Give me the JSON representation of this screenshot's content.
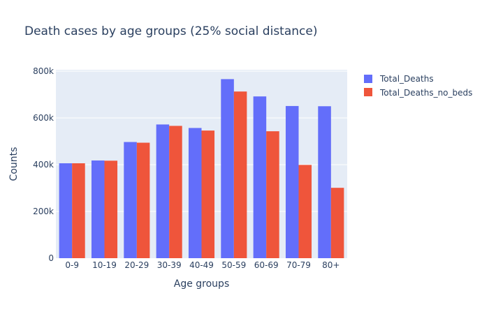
{
  "chart_data": {
    "type": "bar",
    "title": "Death cases by age groups (25% social distance)",
    "xlabel": "Age groups",
    "ylabel": "Counts",
    "categories": [
      "0-9",
      "10-19",
      "20-29",
      "30-39",
      "40-49",
      "50-59",
      "60-69",
      "70-79",
      "80+"
    ],
    "series": [
      {
        "name": "Total_Deaths",
        "color": "#636efa",
        "values": [
          406000,
          418000,
          497000,
          572000,
          557000,
          766000,
          692000,
          651000,
          650000
        ]
      },
      {
        "name": "Total_Deaths_no_beds",
        "color": "#ef553b",
        "values": [
          406000,
          417000,
          494000,
          566000,
          546000,
          713000,
          543000,
          399000,
          301000
        ]
      }
    ],
    "ylim": [
      0,
      806000
    ],
    "yticks": [
      0,
      200000,
      400000,
      600000,
      800000
    ],
    "ytick_labels": [
      "0",
      "200k",
      "400k",
      "600k",
      "800k"
    ],
    "grid": true,
    "legend_position": "top-right",
    "plot_background": "#e5ecf6",
    "gridline_color": "#ffffff",
    "text_color": "#2a3f5f"
  }
}
